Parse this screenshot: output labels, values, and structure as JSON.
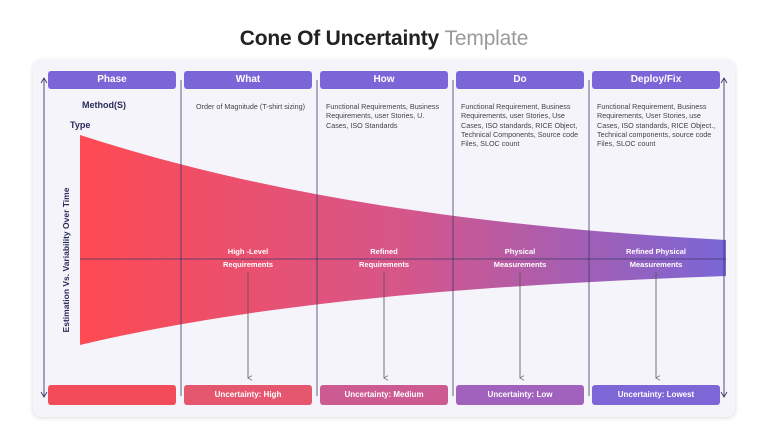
{
  "title": {
    "main": "Cone Of Uncertainty",
    "suffix": "Template"
  },
  "headers": [
    "Phase",
    "What",
    "How",
    "Do",
    "Deploy/Fix"
  ],
  "row_labels": {
    "method": "Method(S)",
    "type": "Type"
  },
  "y_axis_label": "Estimation Vs. Variability Over Time",
  "descriptions": [
    "Order of Magnitude (T-shirt sizing)",
    "Functional Requirements, Business Requirements, user Stories, U. Cases, ISO Standards",
    "Functional Requirement, Business Requirements, user Stories, Use Cases, ISO standards, RICE Object, Technical Components, Source code Files, SLOC count",
    "Functional Requirement, Business Requirements, User Stories, use Cases, ISO standards, RICE Object., Technical components, source code Files, SLOC count"
  ],
  "stages": [
    {
      "line1": "High -Level",
      "line2": "Requirements"
    },
    {
      "line1": "Refined",
      "line2": "Requirements"
    },
    {
      "line1": "Physical",
      "line2": "Measurements"
    },
    {
      "line1": "Refined Physical",
      "line2": "Measurements"
    }
  ],
  "footers": [
    {
      "label": "",
      "color": "#f24b5a"
    },
    {
      "label": "Uncertainty: High",
      "color": "#e4576f"
    },
    {
      "label": "Uncertainty: Medium",
      "color": "#cc5b92"
    },
    {
      "label": "Uncertainty: Low",
      "color": "#a062bd"
    },
    {
      "label": "Uncertainty: Lowest",
      "color": "#7d66d6"
    }
  ],
  "colors": {
    "header": "#7b66d8",
    "cone_start": "#ff4a52",
    "cone_end": "#7a66d6",
    "axis": "#2a2a5a"
  }
}
